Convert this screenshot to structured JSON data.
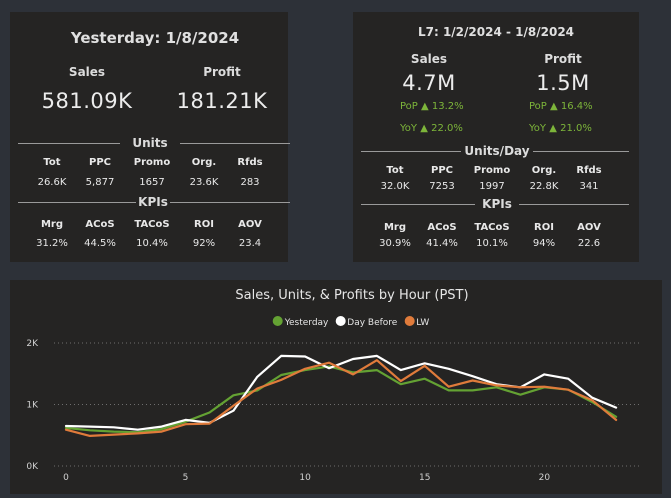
{
  "yesterday": {
    "title": "Yesterday: 1/8/2024",
    "sales_label": "Sales",
    "sales_value": "581.09K",
    "profit_label": "Profit",
    "profit_value": "181.21K",
    "units_label": "Units",
    "units_headers": [
      "Tot",
      "PPC",
      "Promo",
      "Org.",
      "Rfds"
    ],
    "units_values": [
      "26.6K",
      "5,877",
      "1657",
      "23.6K",
      "283"
    ],
    "kpis_label": "KPIs",
    "kpi_headers": [
      "Mrg",
      "ACoS",
      "TACoS",
      "ROI",
      "AOV"
    ],
    "kpi_values": [
      "31.2%",
      "44.5%",
      "10.4%",
      "92%",
      "23.4"
    ]
  },
  "l7": {
    "title": "L7: 1/2/2024 - 1/8/2024",
    "sales_label": "Sales",
    "sales_value": "4.7M",
    "profit_label": "Profit",
    "profit_value": "1.5M",
    "sales_pop_label": "PoP",
    "sales_pop_value": "13.2%",
    "sales_yoy_label": "YoY",
    "sales_yoy_value": "22.0%",
    "profit_pop_label": "PoP",
    "profit_pop_value": "16.4%",
    "profit_yoy_label": "YoY",
    "profit_yoy_value": "21.0%",
    "arrow": "▲",
    "units_label": "Units/Day",
    "units_headers": [
      "Tot",
      "PPC",
      "Promo",
      "Org.",
      "Rfds"
    ],
    "units_values": [
      "32.0K",
      "7253",
      "1997",
      "22.8K",
      "341"
    ],
    "kpis_label": "KPIs",
    "kpi_headers": [
      "Mrg",
      "ACoS",
      "TACoS",
      "ROI",
      "AOV"
    ],
    "kpi_values": [
      "30.9%",
      "41.4%",
      "10.1%",
      "94%",
      "22.6"
    ]
  },
  "colors": {
    "yesterday": "#64a233",
    "day_before": "#ffffff",
    "lw": "#e07b3b",
    "green_text": "#7db53a"
  },
  "chart_data": {
    "type": "line",
    "title": "Sales, Units, & Profits by Hour (PST)",
    "xlabel": "",
    "ylabel": "",
    "x": [
      0,
      1,
      2,
      3,
      4,
      5,
      6,
      7,
      8,
      9,
      10,
      11,
      12,
      13,
      14,
      15,
      16,
      17,
      18,
      19,
      20,
      21,
      22,
      23
    ],
    "xticks": [
      0,
      5,
      10,
      15,
      20
    ],
    "yticks": [
      0,
      1000,
      2000
    ],
    "ytick_labels": [
      "0K",
      "1K",
      "2K"
    ],
    "ylim": [
      0,
      2000
    ],
    "xlim": [
      -0.5,
      24
    ],
    "grid": "horizontal-dotted",
    "legend_position": "top-center",
    "series": [
      {
        "name": "Yesterday",
        "key": "yesterday",
        "values": [
          620,
          580,
          560,
          550,
          600,
          720,
          870,
          1150,
          1230,
          1480,
          1560,
          1620,
          1520,
          1560,
          1330,
          1420,
          1230,
          1230,
          1280,
          1160,
          1280,
          1240,
          1040,
          800
        ]
      },
      {
        "name": "Day Before",
        "key": "day_before",
        "values": [
          650,
          640,
          630,
          590,
          640,
          750,
          700,
          900,
          1450,
          1790,
          1780,
          1590,
          1740,
          1790,
          1560,
          1670,
          1580,
          1460,
          1330,
          1280,
          1490,
          1420,
          1110,
          950
        ]
      },
      {
        "name": "LW",
        "key": "lw",
        "values": [
          590,
          490,
          510,
          530,
          560,
          680,
          690,
          980,
          1260,
          1400,
          1580,
          1680,
          1490,
          1720,
          1380,
          1630,
          1290,
          1390,
          1310,
          1280,
          1290,
          1240,
          1070,
          750
        ]
      }
    ]
  }
}
